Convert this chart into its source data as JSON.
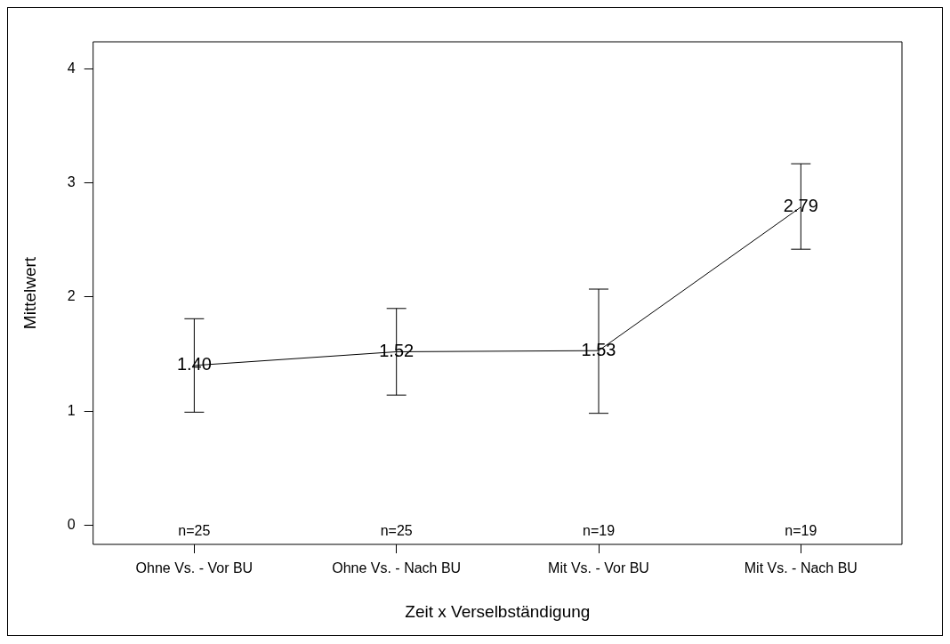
{
  "chart_data": {
    "type": "line",
    "xlabel": "Zeit x Verselbständigung",
    "ylabel": "Mittelwert",
    "categories": [
      "Ohne Vs. - Vor BU",
      "Ohne Vs. - Nach BU",
      "Mit Vs. - Vor BU",
      "Mit Vs. - Nach BU"
    ],
    "values": [
      1.4,
      1.52,
      1.53,
      2.79
    ],
    "value_labels": [
      "1.40",
      "1.52",
      "1.53",
      "2.79"
    ],
    "errors": [
      [
        0.99,
        1.81
      ],
      [
        1.14,
        1.9
      ],
      [
        0.98,
        2.07
      ],
      [
        2.42,
        3.17
      ]
    ],
    "color": "#000000",
    "ylim": [
      -0.17,
      4.24
    ],
    "yticks": [
      0,
      1,
      2,
      3,
      4
    ],
    "annotations": [
      "n=25",
      "n=25",
      "n=19",
      "n=19"
    ],
    "grid": false,
    "legend": false,
    "marker": "none",
    "line_style": "solid"
  }
}
